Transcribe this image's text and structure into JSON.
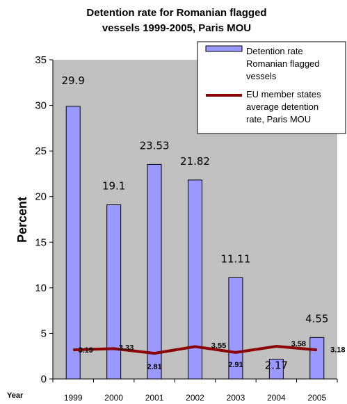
{
  "chart_data": {
    "type": "bar",
    "title_lines": [
      "Detention rate for Romanian flagged",
      "vessels 1999-2005, Paris MOU"
    ],
    "xlabel": "Year",
    "ylabel": "Percent",
    "ylim": [
      0,
      35
    ],
    "yticks": [
      "0",
      "5",
      "10",
      "15",
      "20",
      "25",
      "30",
      "35"
    ],
    "categories": [
      "1999",
      "2000",
      "2001",
      "2002",
      "2003",
      "2004",
      "2005"
    ],
    "grid": false,
    "legend_position": "top-right",
    "series": [
      {
        "name_lines": [
          "Detention rate",
          "Romanian flagged",
          "vessels"
        ],
        "kind": "bar",
        "color": "#9999ff",
        "values": [
          29.9,
          19.1,
          23.53,
          21.82,
          11.11,
          2.17,
          4.55
        ],
        "labels": [
          "29.9",
          "19.1",
          "23.53",
          "21.82",
          "11.11",
          "2.17",
          "4.55"
        ]
      },
      {
        "name_lines": [
          "EU member states",
          "average detention",
          "rate, Paris MOU"
        ],
        "kind": "line",
        "color": "#8b0000",
        "values": [
          3.19,
          3.33,
          2.81,
          3.55,
          2.91,
          3.58,
          3.18
        ],
        "labels": [
          "3.19",
          "3.33",
          "2.81",
          "3.55",
          "2.91",
          "3.58",
          "3.18"
        ]
      }
    ]
  }
}
